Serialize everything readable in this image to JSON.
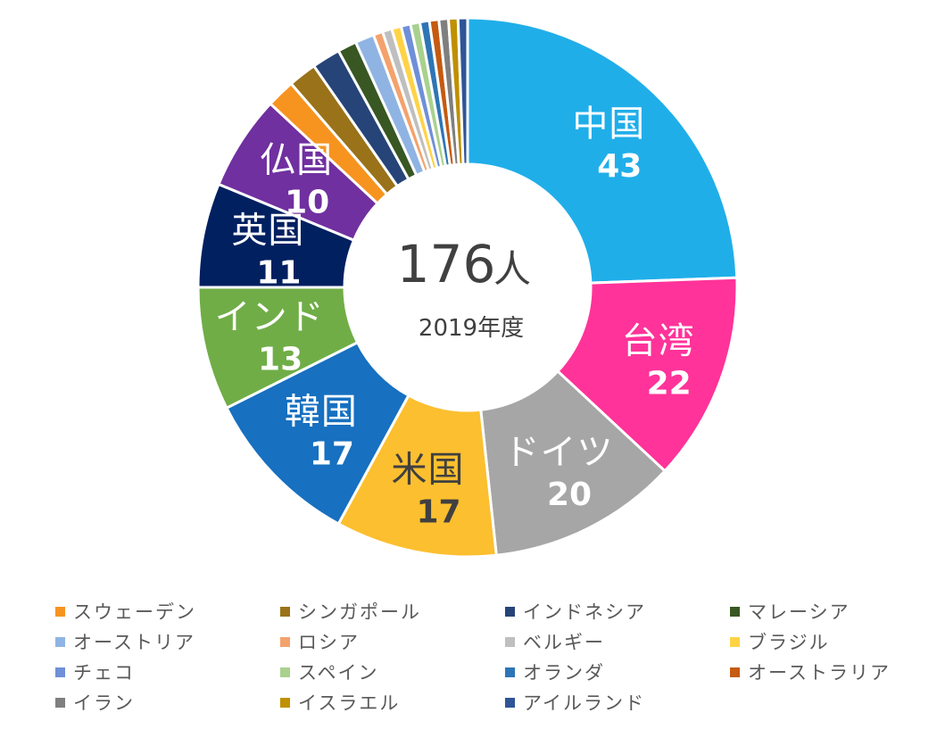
{
  "chart_data": {
    "type": "donut",
    "center_value": "176",
    "center_unit": "人",
    "center_subtitle": "2019年度",
    "slices": [
      {
        "name": "中国",
        "value": 43,
        "color": "#20AEE9",
        "label": true
      },
      {
        "name": "台湾",
        "value": 22,
        "color": "#FF3399",
        "label": true
      },
      {
        "name": "ドイツ",
        "value": 20,
        "color": "#A6A6A6",
        "label": true
      },
      {
        "name": "米国",
        "value": 17,
        "color": "#FCBF2F",
        "label": true,
        "label_color": "#404040"
      },
      {
        "name": "韓国",
        "value": 17,
        "color": "#1770C0",
        "label": true
      },
      {
        "name": "インド",
        "value": 13,
        "color": "#70AD47",
        "label": true
      },
      {
        "name": "英国",
        "value": 11,
        "color": "#002060",
        "label": true
      },
      {
        "name": "仏国",
        "value": 10,
        "color": "#7030A0",
        "label": true
      },
      {
        "name": "スウェーデン",
        "value": 3,
        "color": "#F79420",
        "label": false
      },
      {
        "name": "シンガポール",
        "value": 3,
        "color": "#997219",
        "label": false
      },
      {
        "name": "インドネシア",
        "value": 3,
        "color": "#264478",
        "label": false
      },
      {
        "name": "マレーシア",
        "value": 2,
        "color": "#385723",
        "label": false
      },
      {
        "name": "オーストリア",
        "value": 2,
        "color": "#8FB4E3",
        "label": false
      },
      {
        "name": "ロシア",
        "value": 1,
        "color": "#F4A26C",
        "label": false
      },
      {
        "name": "ベルギー",
        "value": 1,
        "color": "#BFBFBF",
        "label": false
      },
      {
        "name": "ブラジル",
        "value": 1,
        "color": "#FFD347",
        "label": false
      },
      {
        "name": "チェコ",
        "value": 1,
        "color": "#6F8FD8",
        "label": false
      },
      {
        "name": "スペイン",
        "value": 1,
        "color": "#A9D18E",
        "label": false
      },
      {
        "name": "オランダ",
        "value": 1,
        "color": "#2E75B6",
        "label": false
      },
      {
        "name": "オーストラリア",
        "value": 1,
        "color": "#C55A11",
        "label": false
      },
      {
        "name": "イラン",
        "value": 1,
        "color": "#7F7F7F",
        "label": false
      },
      {
        "name": "イスラエル",
        "value": 1,
        "color": "#BF9000",
        "label": false
      },
      {
        "name": "アイルランド",
        "value": 1,
        "color": "#2F5597",
        "label": false
      }
    ],
    "legend": [
      "スウェーデン",
      "シンガポール",
      "インドネシア",
      "マレーシア",
      "オーストリア",
      "ロシア",
      "ベルギー",
      "ブラジル",
      "チェコ",
      "スペイン",
      "オランダ",
      "オーストラリア",
      "イラン",
      "イスラエル",
      "アイルランド"
    ],
    "legend_placement": "bottom"
  }
}
